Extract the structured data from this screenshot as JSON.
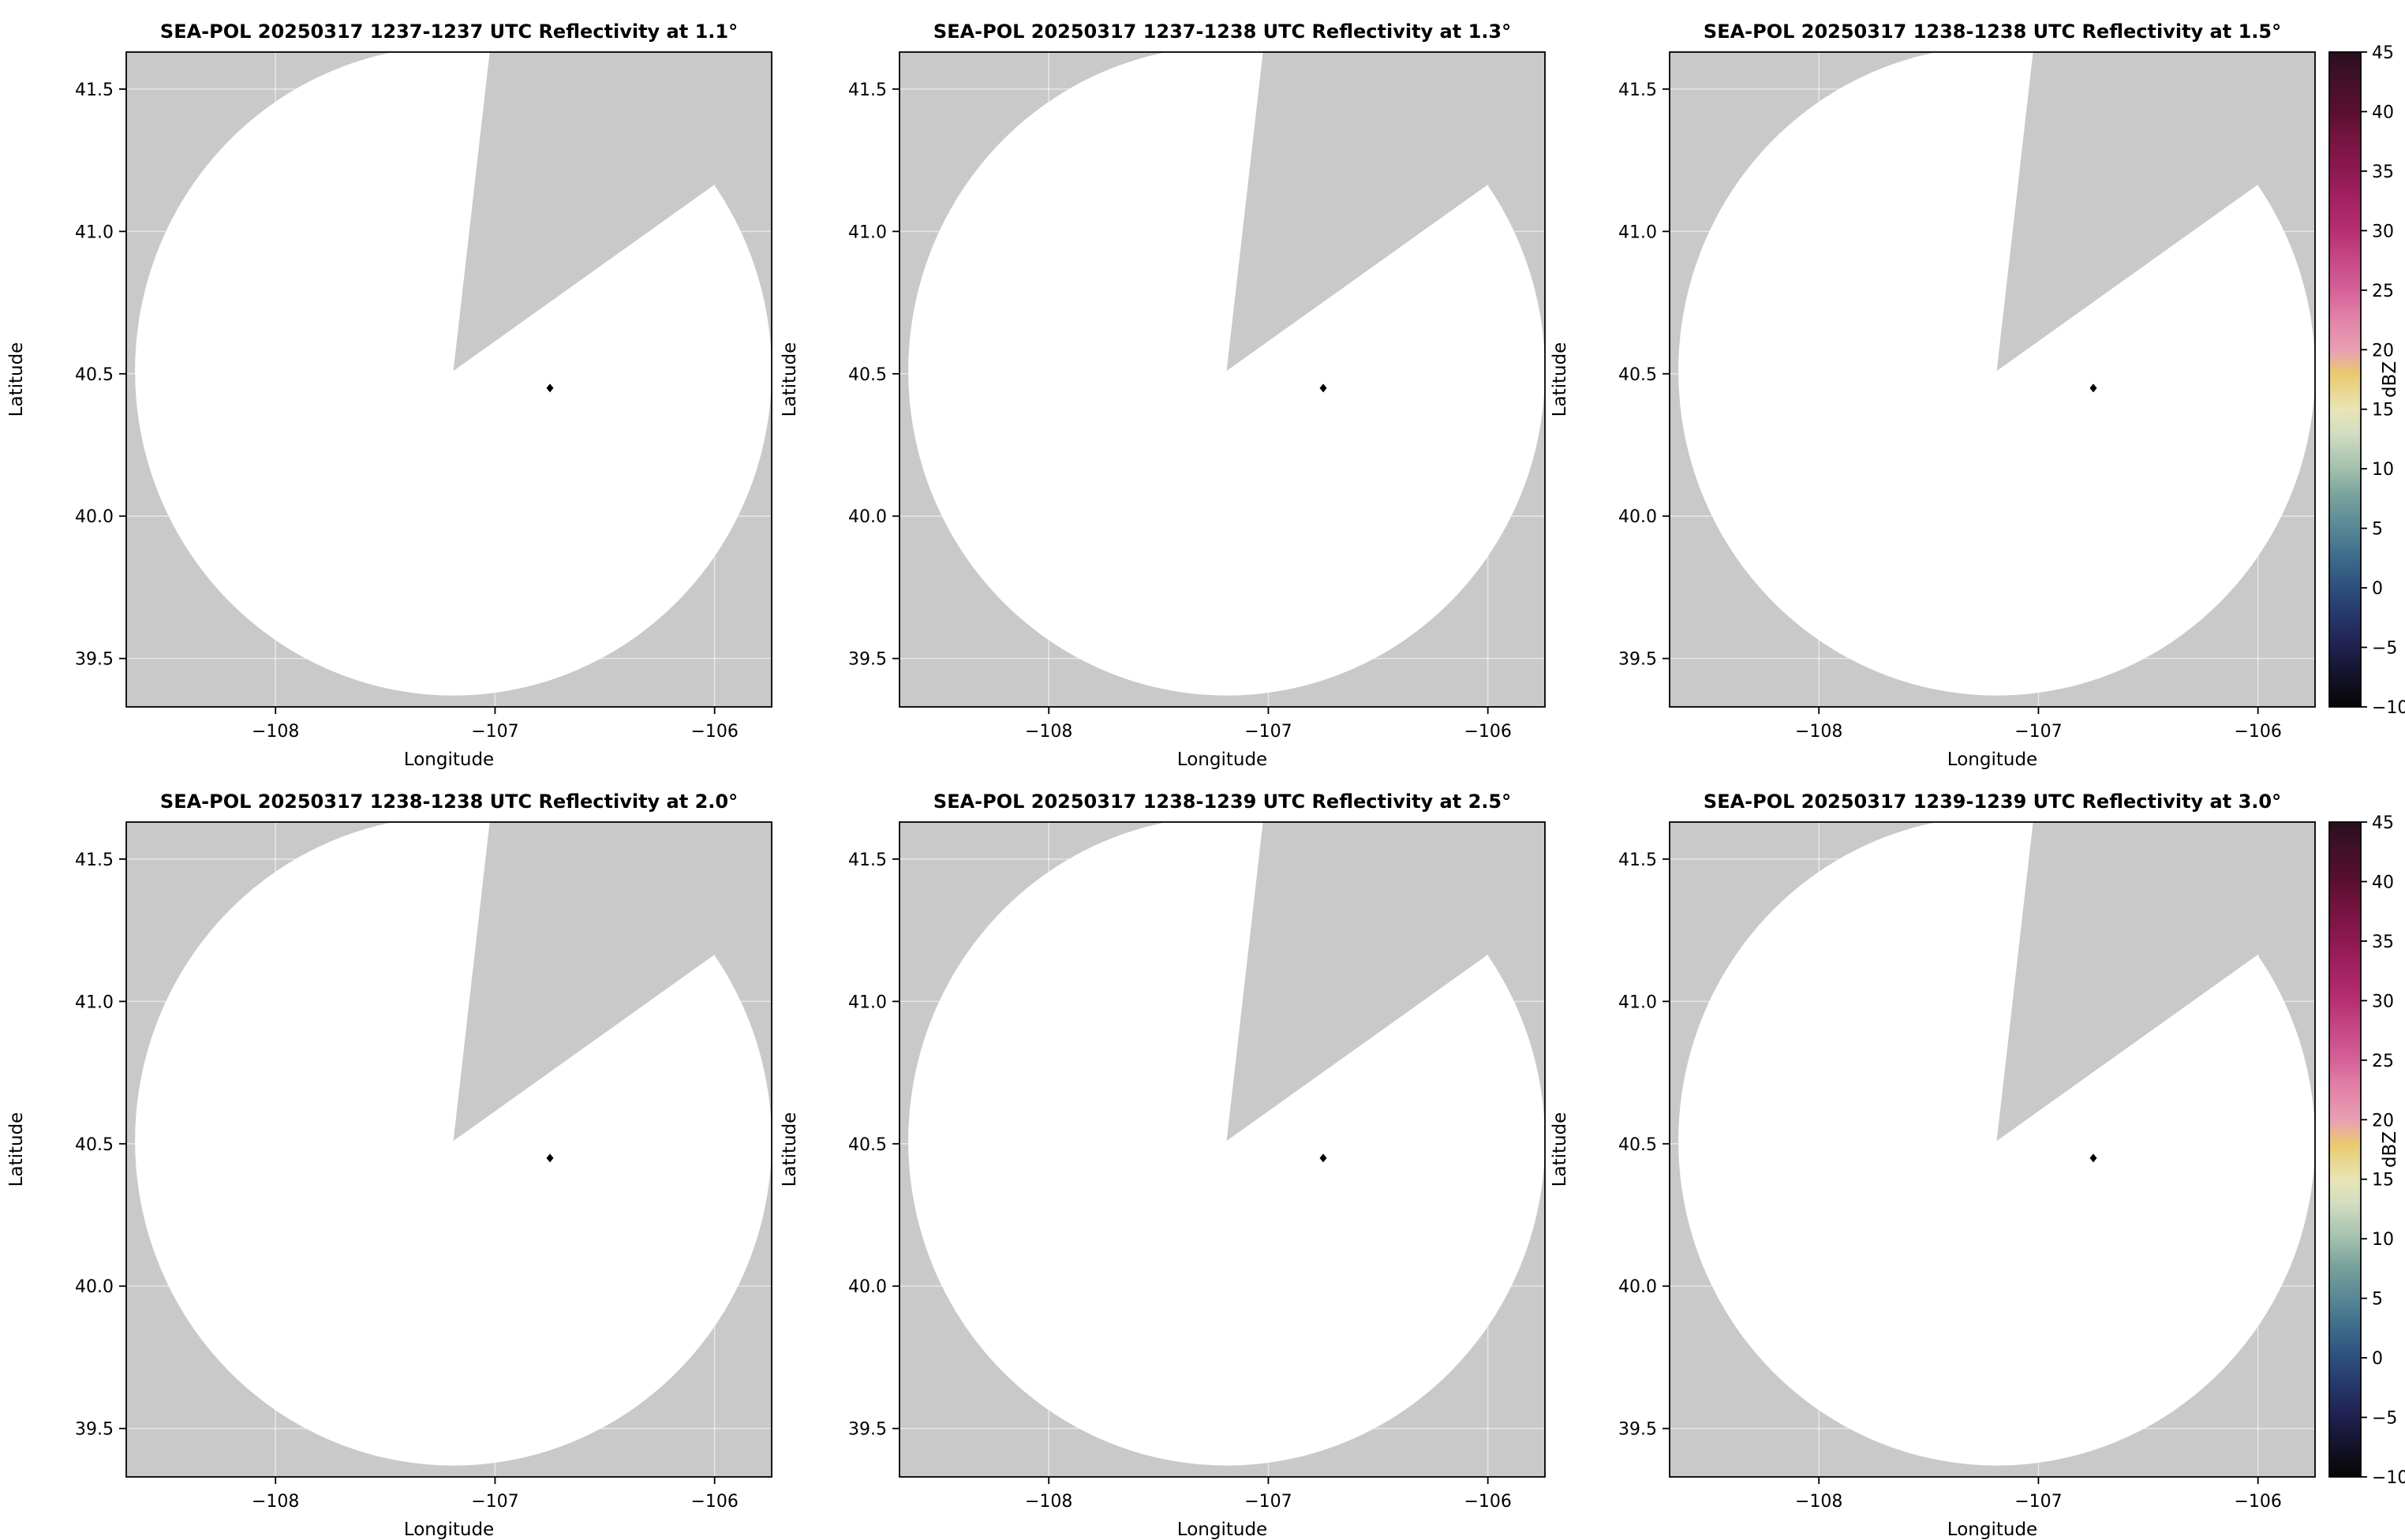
{
  "page": {
    "background": "#ffffff"
  },
  "chart_data": {
    "type": "heatmap",
    "figure_layout": "2 rows x 3 columns of radar PPI reflectivity maps, one shared vertical colorbar per row",
    "panels": [
      {
        "row": 0,
        "col": 0,
        "title": "SEA-POL 20250317 1237-1237 UTC Reflectivity at 1.1°",
        "elevation_deg": 1.1
      },
      {
        "row": 0,
        "col": 1,
        "title": "SEA-POL 20250317 1237-1238 UTC Reflectivity at 1.3°",
        "elevation_deg": 1.3
      },
      {
        "row": 0,
        "col": 2,
        "title": "SEA-POL 20250317 1238-1238 UTC Reflectivity at 1.5°",
        "elevation_deg": 1.5
      },
      {
        "row": 1,
        "col": 0,
        "title": "SEA-POL 20250317 1238-1238 UTC Reflectivity at 2.0°",
        "elevation_deg": 2.0
      },
      {
        "row": 1,
        "col": 1,
        "title": "SEA-POL 20250317 1238-1239 UTC Reflectivity at 2.5°",
        "elevation_deg": 2.5
      },
      {
        "row": 1,
        "col": 2,
        "title": "SEA-POL 20250317 1239-1239 UTC Reflectivity at 3.0°",
        "elevation_deg": 3.0
      }
    ],
    "xlabel": "Longitude",
    "ylabel": "Latitude",
    "xlim": [
      -108.68,
      -105.74
    ],
    "ylim": [
      39.33,
      41.63
    ],
    "xtick_values": [
      -108,
      -107,
      -106
    ],
    "xtick_labels": [
      "−108",
      "−107",
      "−106"
    ],
    "ytick_values": [
      39.5,
      40.0,
      40.5,
      41.0,
      41.5
    ],
    "ytick_labels": [
      "39.5",
      "40.0",
      "40.5",
      "41.0",
      "41.5"
    ],
    "grid": true,
    "colorbar": {
      "label": "dBZ",
      "vmin": -10,
      "vmax": 45,
      "tick_values": [
        45,
        40,
        35,
        30,
        25,
        20,
        15,
        10,
        5,
        0,
        -5,
        -10
      ],
      "tick_labels": [
        "45",
        "40",
        "35",
        "30",
        "25",
        "20",
        "15",
        "10",
        "5",
        "0",
        "−5",
        "−10"
      ],
      "colormap_stops": [
        [
          -10,
          "#060606"
        ],
        [
          -7,
          "#15152f"
        ],
        [
          -5,
          "#20204f"
        ],
        [
          -2,
          "#273a6d"
        ],
        [
          0,
          "#2d4f7d"
        ],
        [
          3,
          "#41708d"
        ],
        [
          5,
          "#578795"
        ],
        [
          8,
          "#7da59f"
        ],
        [
          10,
          "#a3c0ae"
        ],
        [
          13,
          "#d2ddc1"
        ],
        [
          15,
          "#e9e5b4"
        ],
        [
          18,
          "#e9c96e"
        ],
        [
          19,
          "#eab394"
        ],
        [
          20,
          "#e99fb2"
        ],
        [
          23,
          "#e07ea6"
        ],
        [
          25,
          "#d56198"
        ],
        [
          28,
          "#c44483"
        ],
        [
          30,
          "#b52f72"
        ],
        [
          33,
          "#a02060"
        ],
        [
          35,
          "#8d1951"
        ],
        [
          38,
          "#72133e"
        ],
        [
          40,
          "#5a0f2f"
        ],
        [
          43,
          "#3f1028"
        ],
        [
          45,
          "#2a0e20"
        ]
      ]
    },
    "scan_geometry": {
      "center_lon": -107.19,
      "center_lat": 40.51,
      "radius_lon_deg": 1.45,
      "radius_lat_deg": 1.14,
      "missing_sector_azimuth_deg": [
        6.5,
        54.5
      ],
      "radar_marker_lon": -106.75,
      "radar_marker_lat": 40.45,
      "in_range_color": "#ffffff",
      "out_of_range_color": "#c9c9c9",
      "gridline_color": "rgba(255,255,255,0.55)",
      "marker_color": "#000000"
    },
    "values_note": "All six scans show no reflectivity echoes above threshold: the circular scan area is blank (white) with a small black marker at the radar site; the wedge sector from the scan center toward the north-northeast contains no data (gray)."
  }
}
